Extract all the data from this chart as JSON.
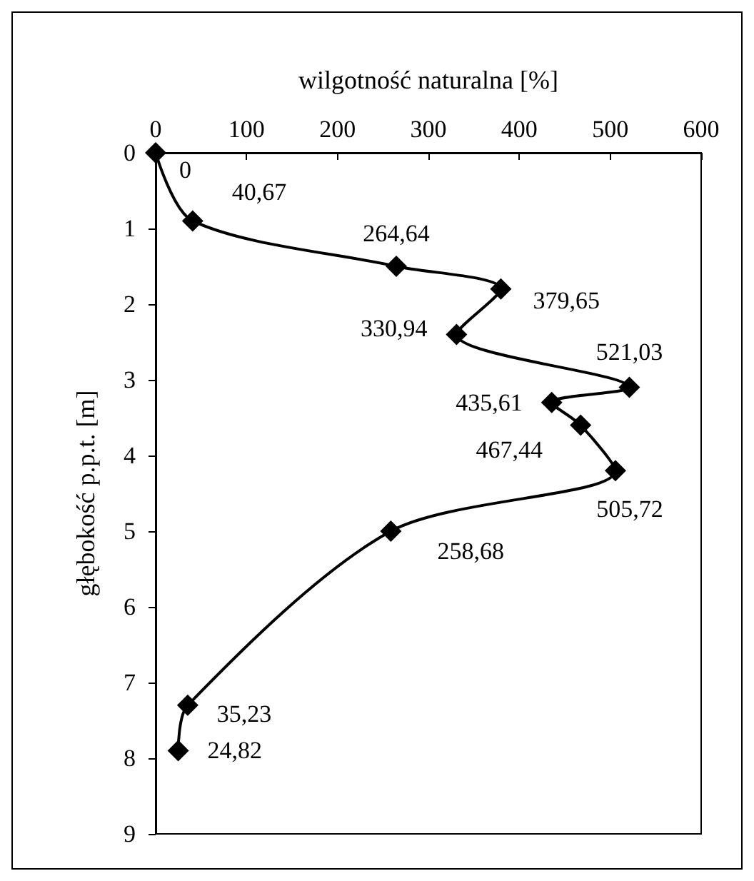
{
  "chart_data": {
    "type": "line",
    "orientation": "horizontal",
    "xlabel": "wilgotność naturalna [%]",
    "ylabel": "głębokość p.p.t. [m]",
    "x": [
      0,
      0.9,
      1.5,
      1.8,
      2.4,
      3.1,
      3.3,
      3.6,
      4.2,
      5.0,
      7.3,
      7.9
    ],
    "values": [
      0,
      40.67,
      264.64,
      379.65,
      330.94,
      521.03,
      435.61,
      467.44,
      505.72,
      258.68,
      35.23,
      24.82
    ],
    "value_labels": [
      "0",
      "40,67",
      "264,64",
      "379,65",
      "330,94",
      "521,03",
      "435,61",
      "467,44",
      "505,72",
      "258,68",
      "35,23",
      "24,82"
    ],
    "color": "#000000",
    "marker": "diamond",
    "line_style": "solid",
    "xlim": [
      0,
      600
    ],
    "xticks": [
      0,
      100,
      200,
      300,
      400,
      500,
      600
    ],
    "ylim": [
      9,
      0
    ],
    "yticks": [
      0,
      1,
      2,
      3,
      4,
      5,
      6,
      7,
      8,
      9
    ],
    "grid": false
  }
}
